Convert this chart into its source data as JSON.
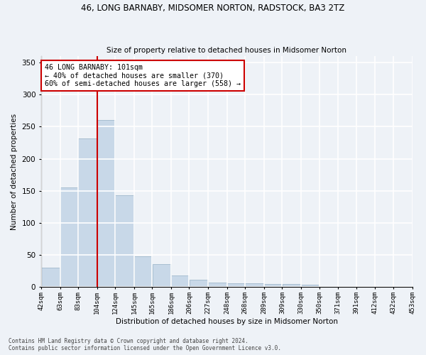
{
  "title1": "46, LONG BARNABY, MIDSOMER NORTON, RADSTOCK, BA3 2TZ",
  "title2": "Size of property relative to detached houses in Midsomer Norton",
  "xlabel": "Distribution of detached houses by size in Midsomer Norton",
  "ylabel": "Number of detached properties",
  "footer1": "Contains HM Land Registry data © Crown copyright and database right 2024.",
  "footer2": "Contains public sector information licensed under the Open Government Licence v3.0.",
  "annotation_line1": "46 LONG BARNABY: 101sqm",
  "annotation_line2": "← 40% of detached houses are smaller (370)",
  "annotation_line3": "60% of semi-detached houses are larger (558) →",
  "bar_edges": [
    42,
    63,
    83,
    104,
    124,
    145,
    165,
    186,
    206,
    227,
    248,
    268,
    289,
    309,
    330,
    350,
    371,
    391,
    412,
    432,
    453
  ],
  "bar_values": [
    30,
    155,
    232,
    260,
    143,
    48,
    36,
    18,
    11,
    7,
    6,
    6,
    5,
    5,
    4,
    0,
    0,
    0,
    0,
    0,
    5
  ],
  "bar_color": "#c8d8e8",
  "bar_edge_color": "#a0b8cc",
  "vline_color": "#cc0000",
  "vline_x": 104,
  "annotation_box_color": "#cc0000",
  "background_color": "#eef2f7",
  "grid_color": "#ffffff",
  "ylim": [
    0,
    360
  ],
  "yticks": [
    0,
    50,
    100,
    150,
    200,
    250,
    300,
    350
  ]
}
